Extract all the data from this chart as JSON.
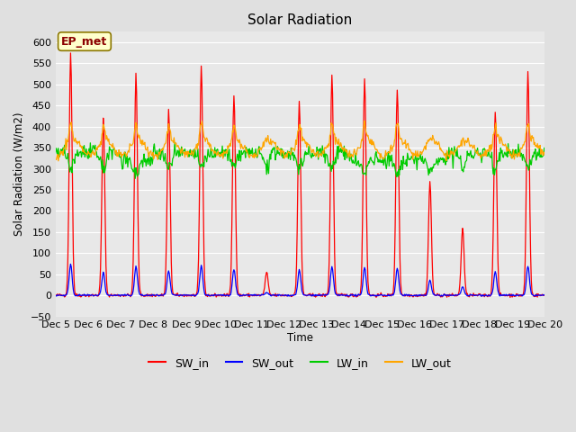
{
  "title": "Solar Radiation",
  "ylabel": "Solar Radiation (W/m2)",
  "xlabel": "Time",
  "ylim": [
    -50,
    625
  ],
  "bg_color": "#e0e0e0",
  "plot_bg_color": "#e8e8e8",
  "grid_color": "#ffffff",
  "colors": {
    "SW_in": "#ff0000",
    "SW_out": "#0000ff",
    "LW_in": "#00cc00",
    "LW_out": "#ffa500"
  },
  "tick_labels": [
    "Dec 5",
    "Dec 6",
    "Dec 7",
    "Dec 8",
    "Dec 9",
    "Dec 10",
    "Dec 11",
    "Dec 12",
    "Dec 13",
    "Dec 14",
    "Dec 15",
    "Dec 16",
    "Dec 17",
    "Dec 18",
    "Dec 19",
    "Dec 20"
  ],
  "yticks": [
    -50,
    0,
    50,
    100,
    150,
    200,
    250,
    300,
    350,
    400,
    450,
    500,
    550,
    600
  ],
  "annotation_text": "EP_met",
  "annotation_color": "#8b0000",
  "annotation_bg": "#ffffcc",
  "n_points_per_day": 48,
  "n_days": 15,
  "peaks_SW_in": [
    575,
    420,
    525,
    440,
    545,
    480,
    55,
    460,
    525,
    515,
    490,
    270,
    160,
    440,
    530
  ]
}
